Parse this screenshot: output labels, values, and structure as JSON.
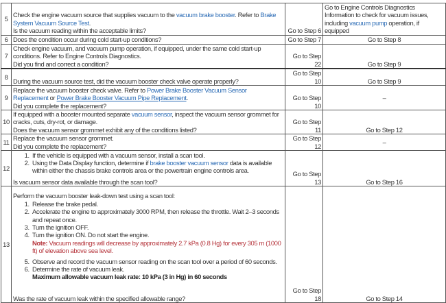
{
  "rows": [
    {
      "step": "5",
      "text_a": "Check the engine vacuum source that supplies vacuum to the ",
      "link_a": "vacuum brake booster",
      "text_b": ". Refer to ",
      "link_b": "Brake System Vacuum Source Test",
      "text_c": ".",
      "question": "Is the vacuum reading within the acceptable limits?",
      "yes": "Go to Step 6",
      "no_a": "Go to Engine Controls Diagnostics Information to check for vacuum issues, including ",
      "no_link": "vacuum pump",
      "no_b": " operation, if equipped"
    },
    {
      "step": "6",
      "question": "Does the condition occur during cold start-up conditions?",
      "yes": "Go to Step 7",
      "no": "Go to Step 8"
    },
    {
      "step": "7",
      "text": "Check engine vacuum, and vacuum pump operation, if equipped, under the same cold start-up conditions. Refer to Engine Controls Diagnostics.",
      "question": "Did you find and correct a condition?",
      "yes": "Go to Step 22",
      "no": "Go to Step 9"
    },
    {
      "step": "8",
      "question": "During the vacuum source test, did the vacuum booster check valve operate properly?",
      "yes": "Go to Step 10",
      "no": "Go to Step 9"
    },
    {
      "step": "9",
      "text_a": "Replace the vacuum booster check valve. Refer to ",
      "link_a": "Power Brake Booster Vacuum Sensor Replacement",
      "text_b": " or ",
      "link_b": "Power Brake Booster Vacuum Pipe Replacement",
      "text_c": ".",
      "question": "Did you complete the replacement?",
      "yes": "Go to Step 10",
      "no": "–"
    },
    {
      "step": "10",
      "text_a": "If equipped with a booster mounted separate ",
      "link_a": "vacuum sensor",
      "text_b": ", inspect the vacuum sensor grommet for cracks, cuts, dry-rot, or damage.",
      "question": "Does the vacuum sensor grommet exhibit any of the conditions listed?",
      "yes": "Go to Step 11",
      "no": "Go to Step 12"
    },
    {
      "step": "11",
      "text": "Replace the vacuum sensor grommet.",
      "question": "Did you complete the replacement?",
      "yes": "Go to Step 12",
      "no": "–"
    },
    {
      "step": "12",
      "items": [
        "If the vehicle is equipped with a vacuum sensor, install a scan tool.",
        "Using the Data Display function, determine if "
      ],
      "item2_link": "brake booster vacuum sensor",
      "item2_rest": " data is available within either the chassis brake controls area or the powertrain engine controls area.",
      "question": "Is vacuum sensor data available through the scan tool?",
      "yes": "Go to Step 13",
      "no": "Go to Step 16"
    },
    {
      "step": "13",
      "intro": "Perform the vacuum booster leak-down test using a scan tool:",
      "items": [
        "Release the brake pedal.",
        "Accelerate the engine to approximately 3000 RPM, then release the throttle. Wait 2–3 seconds and repeat once.",
        "Turn the ignition OFF.",
        "Turn the ignition ON. Do not start the engine.",
        "Observe and record the vacuum sensor reading on the scan tool over a period of 60 seconds.",
        "Determine the rate of vacuum leak."
      ],
      "note_label": "Note:",
      "note": " Vacuum readings will decrease by approximately 2.7 kPa (0.8 Hg) for every 305 m (1000 ft) of elevation above sea level.",
      "spec": "Maximum allowable vacuum leak rate: 10 kPa (3 in Hg) in 60 seconds",
      "question": "Was the rate of vacuum leak within the specified allowable range?",
      "yes": "Go to Step 18",
      "no": "Go to Step 14"
    }
  ],
  "colors": {
    "link": "#2a6bb5",
    "note": "#b5333a",
    "border": "#555555"
  }
}
